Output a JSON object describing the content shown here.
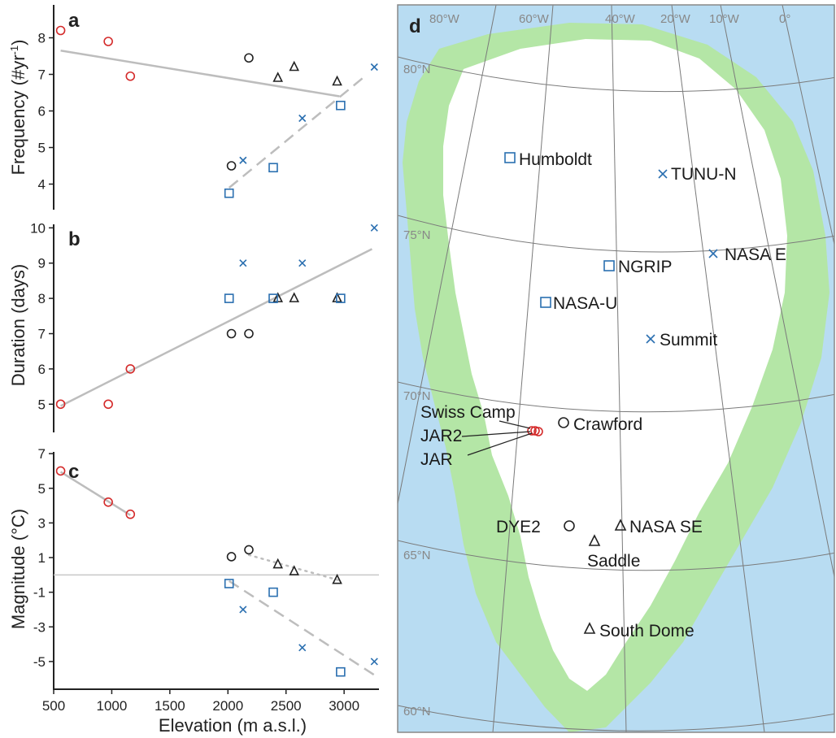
{
  "colors": {
    "red": "#d42a2a",
    "blue": "#2a6fb0",
    "black": "#222222",
    "fit": "#bdbdbd",
    "ocean": "#b8dcf2",
    "vegetation": "#b4e6a6",
    "ice": "#ffffff"
  },
  "shared_x_axis": {
    "label": "Elevation (m a.s.l.)",
    "range": [
      500,
      3300
    ],
    "ticks": [
      "500",
      "1000",
      "1500",
      "2000",
      "2500",
      "3000"
    ]
  },
  "chart_data": [
    {
      "panel": "a",
      "type": "scatter",
      "ylabel": "Frequency (#yr",
      "ylabel_sup": "-1",
      "ylabel_tail": ")",
      "ylim": [
        3.3,
        8.9
      ],
      "yticks": [
        "4",
        "5",
        "6",
        "7",
        "8"
      ],
      "series": [
        {
          "marker": "circle",
          "color": "red",
          "points": [
            [
              560,
              8.2
            ],
            [
              970,
              7.9
            ],
            [
              1160,
              6.95
            ]
          ]
        },
        {
          "marker": "circle",
          "color": "black",
          "points": [
            [
              2030,
              4.5
            ],
            [
              2180,
              7.45
            ]
          ]
        },
        {
          "marker": "triangle",
          "color": "black",
          "points": [
            [
              2430,
              6.9
            ],
            [
              2570,
              7.2
            ],
            [
              2940,
              6.8
            ]
          ]
        },
        {
          "marker": "square",
          "color": "blue",
          "points": [
            [
              2010,
              3.75
            ],
            [
              2390,
              4.45
            ],
            [
              2970,
              6.15
            ]
          ]
        },
        {
          "marker": "x",
          "color": "blue",
          "points": [
            [
              2130,
              4.65
            ],
            [
              2640,
              5.8
            ],
            [
              3260,
              7.2
            ]
          ]
        }
      ],
      "fits": [
        {
          "style": "solid",
          "points": [
            [
              560,
              7.65
            ],
            [
              2960,
              6.4
            ]
          ]
        },
        {
          "style": "dashed",
          "points": [
            [
              2010,
              3.9
            ],
            [
              3180,
              6.95
            ]
          ]
        }
      ]
    },
    {
      "panel": "b",
      "type": "scatter",
      "ylabel": "Duration (days)",
      "ylim": [
        4.2,
        10.1
      ],
      "yticks": [
        "5",
        "6",
        "7",
        "8",
        "9",
        "10"
      ],
      "series": [
        {
          "marker": "circle",
          "color": "red",
          "points": [
            [
              560,
              5
            ],
            [
              970,
              5
            ],
            [
              1160,
              6
            ]
          ]
        },
        {
          "marker": "circle",
          "color": "black",
          "points": [
            [
              2030,
              7
            ],
            [
              2180,
              7
            ]
          ]
        },
        {
          "marker": "triangle",
          "color": "black",
          "points": [
            [
              2430,
              8
            ],
            [
              2570,
              8
            ],
            [
              2940,
              8
            ]
          ]
        },
        {
          "marker": "square",
          "color": "blue",
          "points": [
            [
              2010,
              8
            ],
            [
              2390,
              8
            ],
            [
              2970,
              8
            ]
          ]
        },
        {
          "marker": "x",
          "color": "blue",
          "points": [
            [
              2130,
              9
            ],
            [
              2640,
              9
            ],
            [
              3260,
              10
            ]
          ]
        }
      ],
      "fits": [
        {
          "style": "solid",
          "points": [
            [
              560,
              4.95
            ],
            [
              3240,
              9.4
            ]
          ]
        }
      ]
    },
    {
      "panel": "c",
      "type": "scatter",
      "ylabel": "Magnitude (°C)",
      "ylim": [
        -6.6,
        7.1
      ],
      "yticks": [
        "7",
        "5",
        "3",
        "1",
        "-1",
        "-3",
        "-5"
      ],
      "zero_line": 0,
      "series": [
        {
          "marker": "circle",
          "color": "red",
          "points": [
            [
              560,
              6.0
            ],
            [
              970,
              4.2
            ],
            [
              1160,
              3.5
            ]
          ]
        },
        {
          "marker": "circle",
          "color": "black",
          "points": [
            [
              2030,
              1.05
            ],
            [
              2180,
              1.45
            ]
          ]
        },
        {
          "marker": "triangle",
          "color": "black",
          "points": [
            [
              2430,
              0.6
            ],
            [
              2570,
              0.2
            ],
            [
              2940,
              -0.3
            ]
          ]
        },
        {
          "marker": "square",
          "color": "blue",
          "points": [
            [
              2010,
              -0.5
            ],
            [
              2390,
              -1.0
            ],
            [
              2970,
              -5.6
            ]
          ]
        },
        {
          "marker": "x",
          "color": "blue",
          "points": [
            [
              2130,
              -2.0
            ],
            [
              2640,
              -4.2
            ],
            [
              3260,
              -5.0
            ]
          ]
        }
      ],
      "fits": [
        {
          "style": "solid",
          "points": [
            [
              560,
              5.95
            ],
            [
              1160,
              3.45
            ]
          ]
        },
        {
          "style": "dotted",
          "points": [
            [
              2180,
              1.15
            ],
            [
              2950,
              -0.3
            ]
          ]
        },
        {
          "style": "dashed",
          "points": [
            [
              2010,
              -0.35
            ],
            [
              3300,
              -5.95
            ]
          ]
        }
      ]
    }
  ],
  "map": {
    "panel": "d",
    "longitude_labels": [
      "80°W",
      "60°W",
      "40°W",
      "20°W",
      "10°W",
      "0°"
    ],
    "latitude_labels": [
      "80°N",
      "75°N",
      "70°N",
      "65°N",
      "60°N"
    ],
    "sites": [
      {
        "name": "Humboldt",
        "marker": "square",
        "color": "blue"
      },
      {
        "name": "TUNU-N",
        "marker": "x",
        "color": "blue"
      },
      {
        "name": "NGRIP",
        "marker": "square",
        "color": "blue"
      },
      {
        "name": "NASA E",
        "marker": "x",
        "color": "blue"
      },
      {
        "name": "NASA-U",
        "marker": "square",
        "color": "blue"
      },
      {
        "name": "Summit",
        "marker": "x",
        "color": "blue"
      },
      {
        "name": "Swiss Camp",
        "marker": "circle",
        "color": "red"
      },
      {
        "name": "JAR2",
        "marker": "circle",
        "color": "red"
      },
      {
        "name": "JAR",
        "marker": "circle",
        "color": "red"
      },
      {
        "name": "Crawford",
        "marker": "circle",
        "color": "black"
      },
      {
        "name": "DYE2",
        "marker": "circle",
        "color": "black"
      },
      {
        "name": "NASA SE",
        "marker": "triangle",
        "color": "black"
      },
      {
        "name": "Saddle",
        "marker": "triangle",
        "color": "black"
      },
      {
        "name": "South Dome",
        "marker": "triangle",
        "color": "black"
      }
    ]
  }
}
